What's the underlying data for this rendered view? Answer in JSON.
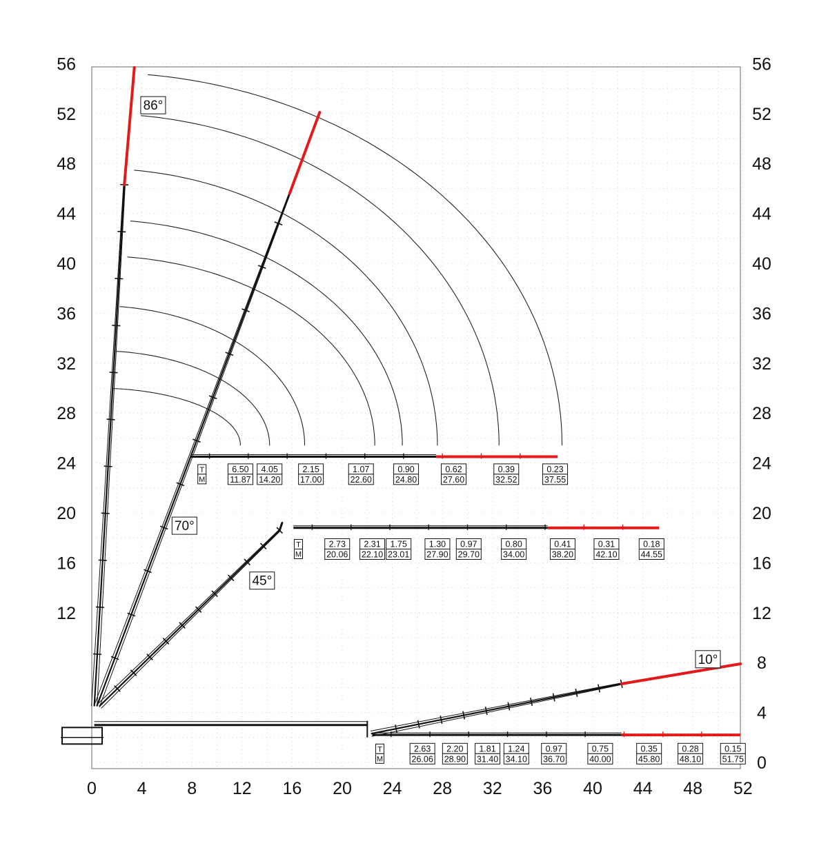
{
  "chart_data": {
    "type": "diagram",
    "x_ticks": [
      "0",
      "4",
      "8",
      "12",
      "16",
      "20",
      "24",
      "28",
      "32",
      "36",
      "40",
      "44",
      "48",
      "52"
    ],
    "y_ticks_left": [
      "12",
      "16",
      "20",
      "24",
      "28",
      "32",
      "36",
      "40",
      "44",
      "48",
      "52",
      "56"
    ],
    "y_ticks_right": [
      "0",
      "4",
      "8",
      "12",
      "16",
      "20",
      "24",
      "28",
      "32",
      "36",
      "40",
      "44",
      "48",
      "52",
      "56"
    ],
    "xlim": [
      0,
      52
    ],
    "ylim": [
      0,
      56
    ],
    "grid": "dotted",
    "colors": {
      "boom": "#111111",
      "jib": "#e3191a",
      "grid": "#c8c8c8",
      "arc": "#222222"
    },
    "row_labels": {
      "t": "T",
      "m": "M"
    },
    "angle_labels": [
      "86°",
      "70°",
      "45°",
      "10°"
    ],
    "booms": [
      {
        "angle": "86°",
        "pivot": [
          0.2,
          4.5
        ],
        "knee": [
          2.6,
          46.3
        ],
        "tip": [
          3.4,
          55.7
        ]
      },
      {
        "angle": "70°",
        "pivot": [
          0.4,
          4.5
        ],
        "knee": [
          14.9,
          43.2
        ],
        "tip": [
          18.2,
          52.1
        ]
      },
      {
        "angle": "45°",
        "pivot": [
          0.6,
          4.5
        ],
        "knee": [
          15.0,
          18.6
        ],
        "tip": [
          15.2,
          19.2
        ]
      },
      {
        "angle": "10°",
        "pivot": [
          22.3,
          2.3
        ],
        "knee": [
          42.3,
          6.3
        ],
        "tip": [
          51.8,
          7.9
        ]
      }
    ],
    "horizontal_booms": [
      {
        "y": 24.5,
        "x_start": 7.9,
        "x_black_end": 27.5,
        "x_end": 37.2
      },
      {
        "y": 18.8,
        "x_start": 16.1,
        "x_black_end": 36.4,
        "x_end": 45.3
      },
      {
        "y": 2.2,
        "x_start": 22.4,
        "x_black_end": 42.3,
        "x_end": 51.8
      }
    ],
    "lower_boom": {
      "y": 3.0,
      "x_start": 0.2,
      "x_end": 22.0
    },
    "arcs": [
      {
        "x_end": 11.87,
        "y_top": 30.0
      },
      {
        "x_end": 14.2,
        "y_top": 33.0
      },
      {
        "x_end": 17.0,
        "y_top": 36.6
      },
      {
        "x_end": 22.6,
        "y_top": 40.6
      },
      {
        "x_end": 24.8,
        "y_top": 43.5
      },
      {
        "x_end": 27.6,
        "y_top": 47.6
      },
      {
        "x_end": 32.52,
        "y_top": 52.0
      },
      {
        "x_end": 37.55,
        "y_top": 55.3
      }
    ],
    "load_tables": [
      {
        "row_y": 23.1,
        "tm_x": 8.8,
        "entries": [
          {
            "t": "6.50",
            "m": "11.87",
            "x": 11.87
          },
          {
            "t": "4.05",
            "m": "14.20",
            "x": 14.2
          },
          {
            "t": "2.15",
            "m": "17.00",
            "x": 17.5
          },
          {
            "t": "1.07",
            "m": "22.60",
            "x": 21.5
          },
          {
            "t": "0.90",
            "m": "24.80",
            "x": 25.1
          },
          {
            "t": "0.62",
            "m": "27.60",
            "x": 28.9
          },
          {
            "t": "0.39",
            "m": "32.52",
            "x": 33.1
          },
          {
            "t": "0.23",
            "m": "37.55",
            "x": 37.0
          }
        ]
      },
      {
        "row_y": 17.1,
        "tm_x": 16.5,
        "entries": [
          {
            "t": "2.73",
            "m": "20.06",
            "x": 19.6
          },
          {
            "t": "2.31",
            "m": "22.10",
            "x": 22.4
          },
          {
            "t": "1.75",
            "m": "23.01",
            "x": 24.5
          },
          {
            "t": "1.30",
            "m": "27.90",
            "x": 27.6
          },
          {
            "t": "0.97",
            "m": "29.70",
            "x": 30.1
          },
          {
            "t": "0.80",
            "m": "34.00",
            "x": 33.7
          },
          {
            "t": "0.41",
            "m": "38.20",
            "x": 37.6
          },
          {
            "t": "0.31",
            "m": "42.10",
            "x": 41.1
          },
          {
            "t": "0.18",
            "m": "44.55",
            "x": 44.7
          }
        ]
      },
      {
        "row_y": 0.7,
        "tm_x": 23.0,
        "entries": [
          {
            "t": "2.63",
            "m": "26.06",
            "x": 26.4
          },
          {
            "t": "2.20",
            "m": "28.90",
            "x": 29.0
          },
          {
            "t": "1.81",
            "m": "31.40",
            "x": 31.6
          },
          {
            "t": "1.24",
            "m": "34.10",
            "x": 33.9
          },
          {
            "t": "0.97",
            "m": "36.70",
            "x": 36.9
          },
          {
            "t": "0.75",
            "m": "40.00",
            "x": 40.6
          },
          {
            "t": "0.35",
            "m": "45.80",
            "x": 44.5
          },
          {
            "t": "0.28",
            "m": "48.10",
            "x": 47.8
          },
          {
            "t": "0.15",
            "m": "51.75",
            "x": 51.2
          }
        ]
      }
    ],
    "angle_label_positions": [
      {
        "text": "86°",
        "x": 4.9,
        "y": 52.7
      },
      {
        "text": "70°",
        "x": 7.4,
        "y": 19.0
      },
      {
        "text": "45°",
        "x": 13.6,
        "y": 14.6
      },
      {
        "text": "10°",
        "x": 49.2,
        "y": 8.3
      }
    ]
  }
}
